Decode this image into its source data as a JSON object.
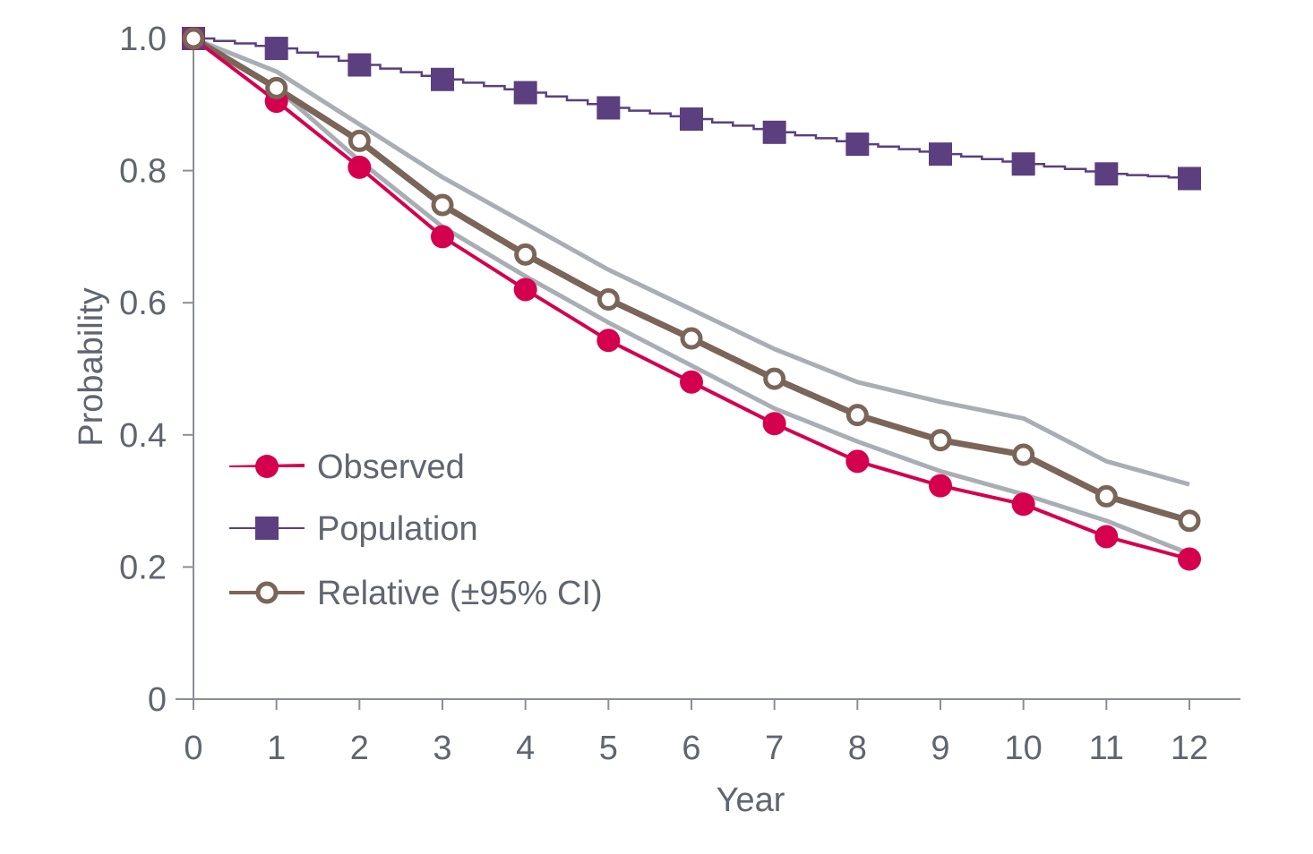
{
  "chart_data": {
    "type": "line",
    "title": "",
    "xlabel": "Year",
    "ylabel": "Probability",
    "xlim": [
      0,
      12
    ],
    "ylim": [
      0,
      1.0
    ],
    "x_ticks": [
      "0",
      "1",
      "2",
      "3",
      "4",
      "5",
      "6",
      "7",
      "8",
      "9",
      "10",
      "11",
      "12"
    ],
    "y_ticks": [
      "0",
      "0.2",
      "0.4",
      "0.6",
      "0.8",
      "1.0"
    ],
    "x_years": [
      0,
      1,
      2,
      3,
      4,
      5,
      6,
      7,
      8,
      9,
      10,
      11,
      12
    ],
    "colors": {
      "observed": "#d4004f",
      "population": "#5b3f7e",
      "relative": "#7b6559",
      "ci": "#a8aeb4",
      "axis": "#8a8f96"
    },
    "series": [
      {
        "key": "observed",
        "name": "Observed",
        "values": [
          1.0,
          0.905,
          0.805,
          0.7,
          0.62,
          0.543,
          0.48,
          0.417,
          0.36,
          0.323,
          0.295,
          0.246,
          0.212
        ]
      },
      {
        "key": "population",
        "name": "Population",
        "values": [
          1.0,
          0.985,
          0.96,
          0.938,
          0.918,
          0.895,
          0.878,
          0.858,
          0.84,
          0.825,
          0.81,
          0.795,
          0.788
        ]
      },
      {
        "key": "relative",
        "name": "Relative (±95% CI)",
        "values": [
          1.0,
          0.925,
          0.845,
          0.748,
          0.673,
          0.605,
          0.546,
          0.485,
          0.43,
          0.392,
          0.37,
          0.307,
          0.27
        ]
      }
    ],
    "ci_upper": [
      1.0,
      0.95,
      0.87,
      0.79,
      0.72,
      0.65,
      0.59,
      0.53,
      0.48,
      0.45,
      0.425,
      0.36,
      0.325
    ],
    "ci_lower": [
      1.0,
      0.925,
      0.815,
      0.715,
      0.64,
      0.57,
      0.505,
      0.44,
      0.39,
      0.345,
      0.31,
      0.27,
      0.22
    ],
    "legend": {
      "placement": "lower-left",
      "entries": [
        "Observed",
        "Population",
        "Relative (±95% CI)"
      ]
    }
  }
}
